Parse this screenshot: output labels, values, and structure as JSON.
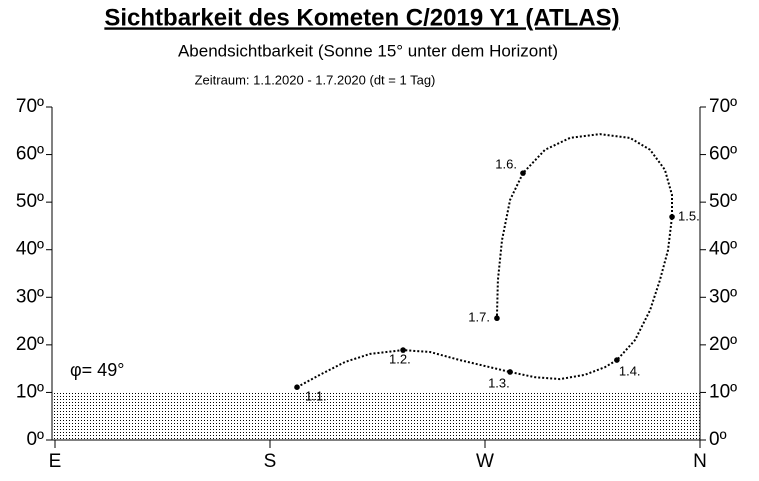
{
  "chart_data": {
    "type": "line",
    "title": "Sichtbarkeit des Kometen C/2019 Y1 (ATLAS)",
    "subtitle": "Abendsichtbarkeit (Sonne 15°  unter dem Horizont)",
    "period": "Zeitraum: 1.1.2020 - 1.7.2020  (dt = 1 Tag)",
    "latitude_label": "φ= 49°",
    "color": "#000000",
    "x": [
      191.3,
      200.9,
      211.4,
      221.9,
      235.7,
      247.0,
      259.5,
      272.1,
      280.5,
      290.9,
      301.4,
      311.8,
      320.2,
      325.2,
      332.8,
      339.1,
      343.2,
      346.6,
      348.3,
      348.3,
      345.3,
      339.1,
      330.7,
      318.1,
      305.6,
      295.1,
      285.9,
      280.5,
      277.1,
      275.4,
      275.0
    ],
    "values": [
      11.1,
      13.7,
      16.4,
      18.1,
      18.9,
      18.5,
      16.8,
      15.3,
      14.3,
      13.2,
      12.8,
      13.7,
      15.3,
      16.8,
      21.0,
      27.3,
      33.6,
      39.9,
      46.9,
      51.5,
      56.8,
      61.0,
      63.5,
      64.3,
      63.5,
      61.0,
      56.1,
      50.5,
      42.0,
      33.6,
      25.6
    ],
    "date_marks": [
      {
        "text": "1.1.",
        "x": 191.3,
        "y": 11.1
      },
      {
        "text": "1.2.",
        "x": 235.7,
        "y": 18.9
      },
      {
        "text": "1.3.",
        "x": 280.5,
        "y": 14.3
      },
      {
        "text": "1.4.",
        "x": 325.2,
        "y": 16.8
      },
      {
        "text": "1.5.",
        "x": 348.3,
        "y": 46.9
      },
      {
        "text": "1.6.",
        "x": 285.9,
        "y": 56.1
      },
      {
        "text": "1.7.",
        "x": 275.0,
        "y": 25.6
      }
    ],
    "horizon_band": [
      0,
      10
    ],
    "xlim": [
      90,
      360
    ],
    "xticks": [
      {
        "value": 90,
        "label": "E"
      },
      {
        "value": 180,
        "label": "S"
      },
      {
        "value": 270,
        "label": "W"
      },
      {
        "value": 360,
        "label": "N"
      }
    ],
    "ylim": [
      0,
      70
    ],
    "yticks": [
      {
        "value": 0,
        "label": "0º"
      },
      {
        "value": 10,
        "label": "10º"
      },
      {
        "value": 20,
        "label": "20º"
      },
      {
        "value": 30,
        "label": "30º"
      },
      {
        "value": 40,
        "label": "40º"
      },
      {
        "value": 50,
        "label": "50º"
      },
      {
        "value": 60,
        "label": "60º"
      },
      {
        "value": 70,
        "label": "70º"
      }
    ]
  }
}
